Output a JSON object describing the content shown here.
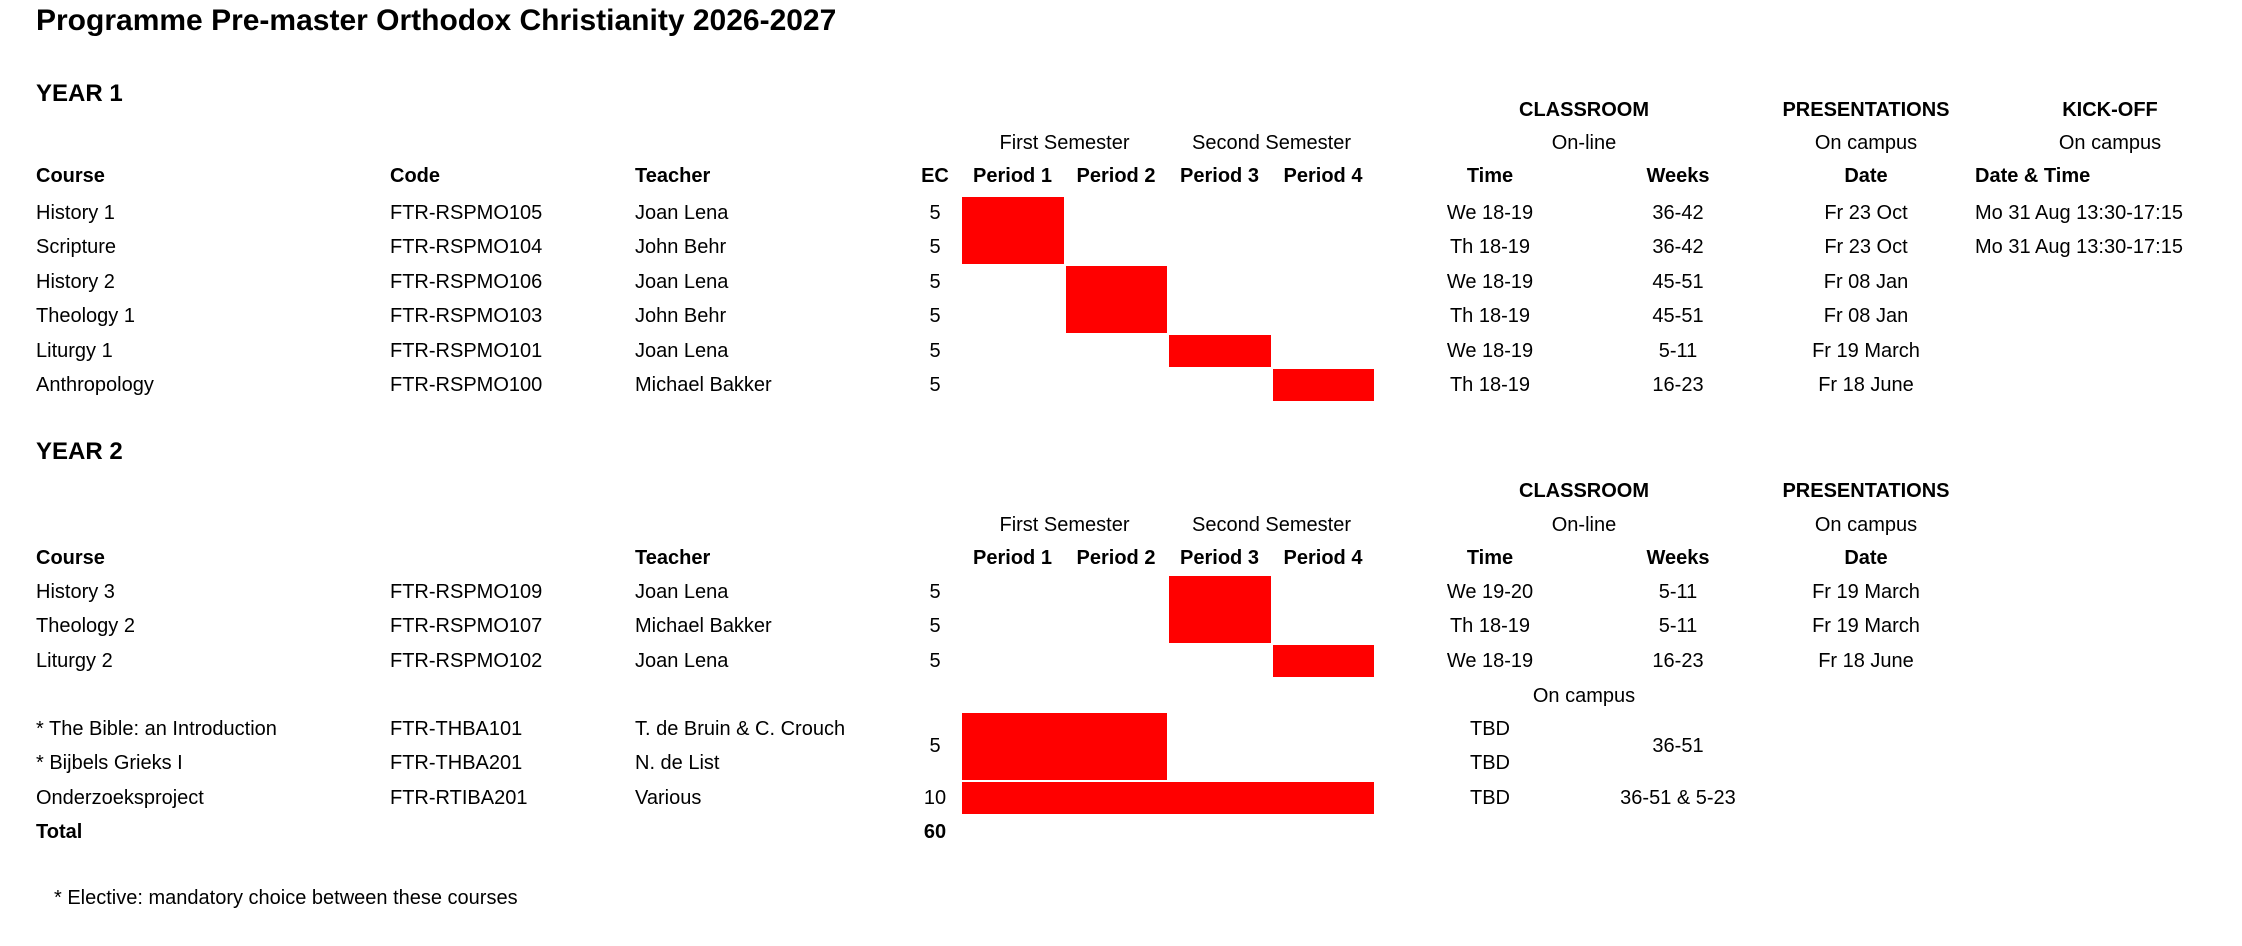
{
  "title": "Programme Pre-master Orthodox Christianity 2026-2027",
  "colors": {
    "highlight": "#ff0000"
  },
  "semester_headers": {
    "first": "First Semester",
    "second": "Second Semester"
  },
  "period_headers": [
    "Period 1",
    "Period 2",
    "Period 3",
    "Period 4"
  ],
  "year1": {
    "heading": "YEAR 1",
    "groups": {
      "classroom": "CLASSROOM",
      "classroom_sub": "On-line",
      "presentations": "PRESENTATIONS",
      "presentations_sub": "On campus",
      "kickoff": "KICK-OFF",
      "kickoff_sub": "On campus"
    },
    "col_headers": {
      "course": "Course",
      "code": "Code",
      "teacher": "Teacher",
      "ec": "EC",
      "time": "Time",
      "weeks": "Weeks",
      "date": "Date",
      "datetime": "Date & Time"
    },
    "rows": [
      {
        "course": "History 1",
        "code": "FTR-RSPMO105",
        "teacher": "Joan Lena",
        "ec": "5",
        "time": "We 18-19",
        "weeks": "36-42",
        "date": "Fr 23 Oct",
        "kickoff": "Mo 31 Aug 13:30-17:15"
      },
      {
        "course": "Scripture",
        "code": "FTR-RSPMO104",
        "teacher": "John Behr",
        "ec": "5",
        "time": "Th 18-19",
        "weeks": "36-42",
        "date": "Fr 23 Oct",
        "kickoff": "Mo 31 Aug 13:30-17:15"
      },
      {
        "course": "History 2",
        "code": "FTR-RSPMO106",
        "teacher": "Joan Lena",
        "ec": "5",
        "time": "We 18-19",
        "weeks": "45-51",
        "date": "Fr 08 Jan",
        "kickoff": ""
      },
      {
        "course": "Theology 1",
        "code": "FTR-RSPMO103",
        "teacher": "John Behr",
        "ec": "5",
        "time": "Th 18-19",
        "weeks": "45-51",
        "date": "Fr 08 Jan",
        "kickoff": ""
      },
      {
        "course": "Liturgy 1",
        "code": "FTR-RSPMO101",
        "teacher": "Joan Lena",
        "ec": "5",
        "time": "We 18-19",
        "weeks": "5-11",
        "date": "Fr 19 March",
        "kickoff": ""
      },
      {
        "course": "Anthropology",
        "code": "FTR-RSPMO100",
        "teacher": "Michael Bakker",
        "ec": "5",
        "time": "Th 18-19",
        "weeks": "16-23",
        "date": "Fr 18 June",
        "kickoff": ""
      }
    ]
  },
  "year2": {
    "heading": "YEAR 2",
    "groups": {
      "classroom": "CLASSROOM",
      "classroom_sub": "On-line",
      "presentations": "PRESENTATIONS",
      "presentations_sub": "On campus"
    },
    "col_headers": {
      "course": "Course",
      "teacher": "Teacher",
      "time": "Time",
      "weeks": "Weeks",
      "date": "Date"
    },
    "rows": [
      {
        "course": "History 3",
        "code": "FTR-RSPMO109",
        "teacher": "Joan Lena",
        "ec": "5",
        "time": "We 19-20",
        "weeks": "5-11",
        "date": "Fr 19 March"
      },
      {
        "course": "Theology 2",
        "code": "FTR-RSPMO107",
        "teacher": "Michael Bakker",
        "ec": "5",
        "time": "Th 18-19",
        "weeks": "5-11",
        "date": "Fr 19 March"
      },
      {
        "course": "Liturgy 2",
        "code": "FTR-RSPMO102",
        "teacher": "Joan Lena",
        "ec": "5",
        "time": "We 18-19",
        "weeks": "16-23",
        "date": "Fr 18 June"
      }
    ],
    "campus_note": "On campus",
    "electives": [
      {
        "course": "* The Bible: an Introduction",
        "code": "FTR-THBA101",
        "teacher": "T. de Bruin & C. Crouch",
        "time": "TBD"
      },
      {
        "course": "* Bijbels Grieks I",
        "code": "FTR-THBA201",
        "teacher": "N. de List",
        "time": "TBD"
      }
    ],
    "electives_shared": {
      "ec": "5",
      "weeks": "36-51"
    },
    "project": {
      "course": "Onderzoeksproject",
      "code": "FTR-RTIBA201",
      "teacher": "Various",
      "ec": "10",
      "time": "TBD",
      "weeks": "36-51 & 5-23"
    },
    "total": {
      "label": "Total",
      "ec": "60"
    }
  },
  "schedule_blocks": [
    {
      "group": "year1",
      "row_start": 0,
      "row_end": 1,
      "period_start": 1,
      "period_end": 1
    },
    {
      "group": "year1",
      "row_start": 2,
      "row_end": 3,
      "period_start": 2,
      "period_end": 2
    },
    {
      "group": "year1",
      "row_start": 4,
      "row_end": 4,
      "period_start": 3,
      "period_end": 3
    },
    {
      "group": "year1",
      "row_start": 5,
      "row_end": 5,
      "period_start": 4,
      "period_end": 4
    },
    {
      "group": "year2_main",
      "row_start": 0,
      "row_end": 1,
      "period_start": 3,
      "period_end": 3
    },
    {
      "group": "year2_main",
      "row_start": 2,
      "row_end": 2,
      "period_start": 4,
      "period_end": 4
    },
    {
      "group": "year2_elective",
      "row_start": 0,
      "row_end": 1,
      "period_start": 1,
      "period_end": 2
    },
    {
      "group": "year2_elective",
      "row_start": 2,
      "row_end": 2,
      "period_start": 1,
      "period_end": 4
    }
  ],
  "footnote": "* Elective: mandatory choice between these courses"
}
